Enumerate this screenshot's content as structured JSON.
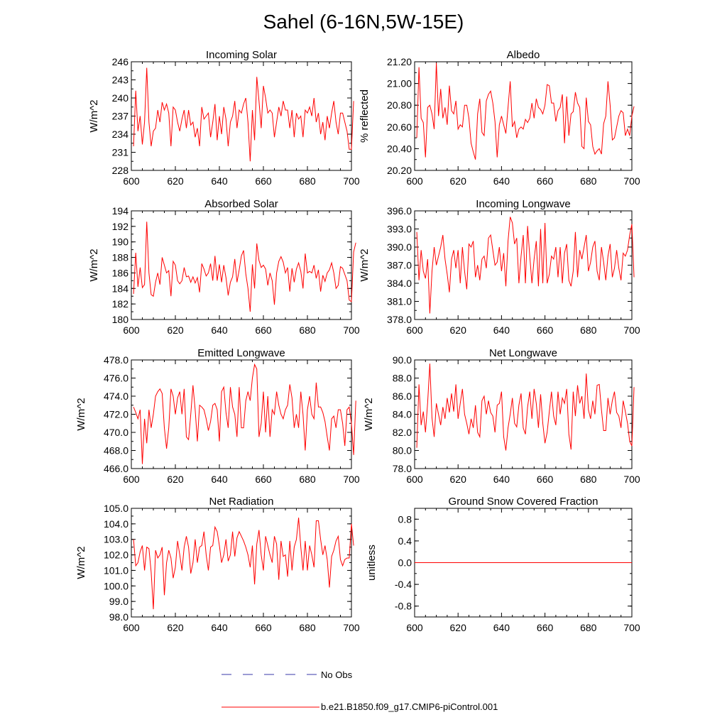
{
  "figure": {
    "title": "Sahel (6-16N,5W-15E)"
  },
  "legend": [
    {
      "label": "No Obs",
      "color": "#3a3aa8",
      "style": "dashed"
    },
    {
      "label": "b.e21.B1850.f09_g17.CMIP6-piControl.001",
      "color": "#ff0000",
      "style": "solid"
    }
  ],
  "chart_data": [
    {
      "id": "incoming-solar",
      "type": "line",
      "title": "Incoming Solar",
      "xlabel": "",
      "ylabel": "W/m^2",
      "xlim": [
        600,
        700
      ],
      "ylim": [
        228,
        246
      ],
      "xticks": [
        "600",
        "620",
        "640",
        "660",
        "680",
        "700"
      ],
      "yticks": [
        "228",
        "231",
        "234",
        "237",
        "240",
        "243",
        "246"
      ],
      "x_start": 601,
      "series": [
        {
          "name": "b.e21.B1850.f09_g17.CMIP6-piControl.001",
          "color": "#ff0000",
          "values": [
            232.0,
            241.2,
            234.5,
            237.0,
            232.3,
            236.0,
            245.0,
            236.0,
            232.0,
            234.5,
            235.0,
            238.0,
            236.0,
            239.3,
            238.0,
            239.0,
            237.5,
            232.0,
            238.5,
            238.0,
            236.0,
            234.5,
            236.5,
            238.0,
            235.0,
            238.0,
            235.5,
            236.0,
            233.5,
            235.0,
            232.0,
            238.5,
            236.5,
            237.0,
            237.5,
            233.5,
            236.0,
            239.0,
            233.0,
            237.0,
            234.0,
            238.5,
            236.5,
            232.0,
            236.0,
            237.0,
            239.5,
            235.0,
            238.0,
            237.5,
            239.0,
            240.0,
            236.0,
            229.5,
            238.0,
            233.0,
            243.5,
            239.5,
            235.0,
            242.0,
            240.0,
            237.5,
            238.0,
            237.5,
            233.5,
            236.0,
            238.5,
            237.0,
            239.5,
            238.0,
            238.0,
            235.0,
            238.0,
            233.5,
            237.5,
            236.5,
            237.0,
            233.5,
            238.0,
            237.5,
            238.5,
            237.0,
            240.0,
            236.0,
            237.5,
            234.0,
            236.0,
            233.0,
            237.0,
            235.0,
            237.5,
            239.5,
            236.0,
            234.0,
            237.5,
            237.5,
            236.0,
            234.5,
            231.5,
            231.5,
            239.5
          ]
        }
      ]
    },
    {
      "id": "albedo",
      "type": "line",
      "title": "Albedo",
      "xlabel": "",
      "ylabel": "% reflected",
      "xlim": [
        600,
        700
      ],
      "ylim": [
        20.2,
        21.2
      ],
      "xticks": [
        "600",
        "620",
        "640",
        "660",
        "680",
        "700"
      ],
      "yticks": [
        "20.20",
        "20.40",
        "20.60",
        "20.80",
        "21.00",
        "21.20"
      ],
      "x_start": 601,
      "series": [
        {
          "name": "b.e21.B1850.f09_g17.CMIP6-piControl.001",
          "color": "#ff0000",
          "values": [
            20.5,
            21.15,
            20.68,
            20.64,
            20.32,
            20.78,
            20.8,
            20.72,
            20.58,
            21.19,
            20.7,
            20.95,
            20.68,
            20.78,
            20.62,
            20.98,
            20.75,
            20.72,
            20.84,
            20.58,
            20.62,
            20.6,
            20.8,
            20.8,
            20.68,
            20.45,
            20.37,
            20.3,
            20.72,
            20.86,
            20.55,
            20.52,
            20.84,
            20.9,
            20.93,
            20.82,
            20.65,
            20.32,
            20.62,
            20.7,
            20.62,
            20.54,
            20.78,
            21.02,
            20.6,
            20.65,
            20.5,
            20.58,
            20.6,
            20.58,
            20.67,
            20.64,
            20.68,
            20.82,
            20.68,
            20.86,
            20.78,
            20.76,
            20.72,
            20.8,
            20.99,
            20.98,
            20.82,
            20.82,
            20.65,
            20.75,
            20.78,
            20.9,
            20.45,
            20.88,
            20.52,
            20.72,
            20.74,
            20.92,
            20.82,
            20.78,
            20.42,
            20.4,
            20.87,
            20.65,
            20.62,
            20.42,
            20.35,
            20.38,
            20.4,
            20.35,
            20.63,
            20.7,
            21.02,
            20.8,
            20.48,
            20.5,
            20.6,
            20.7,
            20.75,
            20.73,
            20.52,
            20.58,
            20.52,
            20.7,
            20.79
          ]
        }
      ]
    },
    {
      "id": "absorbed-solar",
      "type": "line",
      "title": "Absorbed Solar",
      "xlabel": "",
      "ylabel": "W/m^2",
      "xlim": [
        600,
        700
      ],
      "ylim": [
        180,
        194
      ],
      "xticks": [
        "600",
        "620",
        "640",
        "660",
        "680",
        "700"
      ],
      "yticks": [
        "180",
        "182",
        "184",
        "186",
        "188",
        "190",
        "192",
        "194"
      ],
      "x_start": 601,
      "series": [
        {
          "name": "b.e21.B1850.f09_g17.CMIP6-piControl.001",
          "color": "#ff0000",
          "values": [
            183.3,
            188.6,
            184.2,
            186.7,
            184.1,
            184.5,
            192.6,
            186.0,
            183.2,
            183.0,
            184.8,
            186.0,
            184.5,
            188.0,
            187.0,
            186.0,
            186.3,
            183.0,
            187.5,
            187.0,
            185.0,
            184.6,
            185.0,
            186.7,
            185.5,
            185.6,
            184.8,
            185.5,
            184.7,
            185.4,
            183.5,
            187.2,
            186.5,
            185.6,
            186.0,
            187.2,
            185.0,
            188.2,
            185.0,
            187.1,
            184.8,
            187.0,
            185.4,
            183.1,
            184.8,
            185.5,
            187.8,
            184.8,
            186.4,
            188.2,
            188.9,
            185.9,
            184.0,
            181.0,
            187.1,
            184.0,
            189.8,
            187.6,
            186.7,
            187.0,
            186.5,
            184.4,
            186.0,
            185.0,
            181.9,
            186.0,
            187.5,
            188.1,
            187.4,
            186.0,
            186.7,
            183.6,
            186.6,
            184.8,
            186.5,
            187.3,
            186.2,
            184.0,
            188.5,
            186.0,
            186.2,
            186.0,
            187.0,
            185.3,
            186.4,
            183.6,
            185.7,
            184.9,
            186.0,
            186.4,
            187.3,
            186.0,
            184.0,
            184.4,
            186.8,
            186.6,
            185.8,
            185.0,
            182.5,
            182.3,
            188.7,
            189.9
          ]
        }
      ]
    },
    {
      "id": "incoming-longwave",
      "type": "line",
      "title": "Incoming Longwave",
      "xlabel": "",
      "ylabel": "W/m^2",
      "xlim": [
        600,
        700
      ],
      "ylim": [
        378,
        396
      ],
      "xticks": [
        "600",
        "620",
        "640",
        "660",
        "680",
        "700"
      ],
      "yticks": [
        "378.0",
        "381.0",
        "384.0",
        "387.0",
        "390.0",
        "393.0",
        "396.0"
      ],
      "x_start": 601,
      "series": [
        {
          "name": "b.e21.B1850.f09_g17.CMIP6-piControl.001",
          "color": "#ff0000",
          "values": [
            392.5,
            384.5,
            389.5,
            386.0,
            384.8,
            388.0,
            379.0,
            386.0,
            390.0,
            387.0,
            388.5,
            390.0,
            392.0,
            388.0,
            385.5,
            382.5,
            388.0,
            389.5,
            386.5,
            389.5,
            384.0,
            390.0,
            386.0,
            383.0,
            390.5,
            390.0,
            391.0,
            385.0,
            387.0,
            384.5,
            388.0,
            388.5,
            386.5,
            391.5,
            392.0,
            389.5,
            387.0,
            387.5,
            390.0,
            386.0,
            389.0,
            383.5,
            391.0,
            395.0,
            394.0,
            390.5,
            391.5,
            384.0,
            388.5,
            392.0,
            384.0,
            393.5,
            388.5,
            384.0,
            388.0,
            391.0,
            383.5,
            393.0,
            384.0,
            394.0,
            384.0,
            385.5,
            388.5,
            388.0,
            390.0,
            385.0,
            390.0,
            384.0,
            389.0,
            390.5,
            384.5,
            383.5,
            386.0,
            392.5,
            385.0,
            389.5,
            388.0,
            390.0,
            392.0,
            386.0,
            387.5,
            390.0,
            391.0,
            386.0,
            384.5,
            390.0,
            387.5,
            384.5,
            388.5,
            390.5,
            385.0,
            386.5,
            389.5,
            386.5,
            384.5,
            389.0,
            388.5,
            389.5,
            392.0,
            393.8,
            385.0
          ]
        }
      ]
    },
    {
      "id": "emitted-longwave",
      "type": "line",
      "title": "Emitted Longwave",
      "xlabel": "",
      "ylabel": "W/m^2",
      "xlim": [
        600,
        700
      ],
      "ylim": [
        466,
        478
      ],
      "xticks": [
        "600",
        "620",
        "640",
        "660",
        "680",
        "700"
      ],
      "yticks": [
        "466.0",
        "468.0",
        "470.0",
        "472.0",
        "474.0",
        "476.0",
        "478.0"
      ],
      "x_start": 601,
      "series": [
        {
          "name": "b.e21.B1850.f09_g17.CMIP6-piControl.001",
          "color": "#ff0000",
          "values": [
            472.8,
            472.2,
            471.5,
            472.5,
            466.5,
            471.5,
            468.8,
            472.5,
            470.5,
            472.0,
            474.0,
            474.5,
            474.8,
            474.3,
            470.5,
            468.2,
            470.5,
            474.8,
            474.0,
            472.0,
            473.8,
            474.5,
            472.0,
            474.8,
            469.5,
            469.2,
            472.0,
            475.2,
            472.5,
            469.0,
            473.0,
            472.8,
            472.5,
            471.5,
            470.2,
            471.2,
            473.0,
            473.2,
            472.5,
            469.0,
            474.5,
            475.0,
            472.2,
            470.5,
            475.0,
            472.8,
            472.0,
            469.5,
            475.0,
            470.5,
            470.5,
            473.5,
            474.5,
            473.5,
            476.0,
            477.5,
            477.0,
            469.5,
            471.0,
            474.5,
            470.0,
            474.0,
            469.5,
            472.5,
            472.0,
            474.5,
            473.0,
            472.0,
            471.5,
            472.5,
            473.0,
            475.3,
            473.8,
            470.5,
            472.0,
            470.5,
            474.5,
            472.0,
            468.0,
            472.5,
            474.0,
            472.0,
            471.5,
            475.5,
            472.8,
            472.8,
            472.2,
            471.2,
            469.5,
            468.0,
            471.5,
            471.8,
            470.5,
            472.5,
            472.5,
            471.0,
            468.5,
            472.5,
            472.8,
            471.0,
            467.5,
            473.5
          ]
        }
      ]
    },
    {
      "id": "net-longwave",
      "type": "line",
      "title": "Net Longwave",
      "xlabel": "",
      "ylabel": "W/m^2",
      "xlim": [
        600,
        700
      ],
      "ylim": [
        78,
        90
      ],
      "xticks": [
        "600",
        "620",
        "640",
        "660",
        "680",
        "700"
      ],
      "yticks": [
        "78.0",
        "80.0",
        "82.0",
        "84.0",
        "86.0",
        "88.0",
        "90.0"
      ],
      "x_start": 601,
      "series": [
        {
          "name": "b.e21.B1850.f09_g17.CMIP6-piControl.001",
          "color": "#ff0000",
          "values": [
            80.3,
            87.3,
            82.8,
            84.3,
            82.0,
            85.3,
            89.6,
            83.6,
            81.5,
            85.2,
            84.0,
            82.8,
            84.8,
            83.5,
            85.8,
            84.2,
            86.3,
            84.3,
            87.3,
            83.5,
            85.2,
            86.8,
            84.0,
            83.0,
            81.8,
            83.5,
            82.5,
            85.0,
            82.0,
            81.5,
            85.5,
            86.0,
            84.0,
            85.5,
            84.2,
            83.8,
            82.0,
            85.0,
            85.2,
            86.5,
            81.5,
            80.0,
            82.5,
            84.0,
            85.8,
            83.0,
            82.6,
            85.0,
            86.3,
            82.5,
            81.8,
            84.8,
            86.5,
            83.5,
            86.8,
            85.2,
            82.5,
            86.2,
            83.0,
            80.8,
            82.0,
            84.3,
            86.5,
            83.8,
            82.8,
            86.5,
            84.0,
            85.8,
            85.2,
            86.8,
            81.8,
            80.1,
            86.5,
            83.8,
            87.2,
            85.2,
            86.0,
            83.5,
            88.5,
            84.5,
            83.5,
            85.5,
            84.0,
            87.2,
            87.3,
            84.5,
            82.2,
            82.2,
            85.8,
            84.0,
            85.5,
            86.5,
            84.2,
            83.8,
            82.5,
            85.5,
            84.3,
            83.0,
            81.0,
            80.5,
            87.0
          ]
        }
      ]
    },
    {
      "id": "net-radiation",
      "type": "line",
      "title": "Net Radiation",
      "xlabel": "",
      "ylabel": "W/m^2",
      "xlim": [
        600,
        700
      ],
      "ylim": [
        98,
        105
      ],
      "xticks": [
        "600",
        "620",
        "640",
        "660",
        "680",
        "700"
      ],
      "yticks": [
        "98.0",
        "99.0",
        "100.0",
        "101.0",
        "102.0",
        "103.0",
        "104.0",
        "105.0"
      ],
      "x_start": 601,
      "series": [
        {
          "name": "b.e21.B1850.f09_g17.CMIP6-piControl.001",
          "color": "#ff0000",
          "values": [
            103.0,
            101.3,
            101.5,
            102.2,
            102.6,
            101.0,
            102.5,
            102.4,
            100.9,
            98.5,
            102.3,
            101.8,
            102.0,
            102.5,
            99.4,
            101.5,
            102.3,
            101.8,
            100.5,
            101.2,
            102.9,
            102.0,
            101.0,
            102.5,
            103.2,
            102.5,
            100.8,
            101.5,
            103.0,
            101.5,
            102.5,
            102.6,
            103.5,
            102.0,
            101.0,
            102.5,
            102.6,
            103.8,
            103.5,
            102.6,
            101.5,
            102.0,
            103.0,
            101.6,
            102.0,
            103.5,
            101.9,
            103.1,
            103.5,
            103.2,
            102.9,
            102.5,
            102.0,
            101.2,
            102.6,
            100.1,
            102.7,
            103.6,
            102.0,
            101.0,
            103.2,
            102.6,
            102.0,
            101.5,
            103.2,
            102.7,
            100.4,
            102.9,
            101.9,
            102.0,
            100.6,
            102.9,
            101.0,
            102.5,
            103.0,
            104.4,
            102.5,
            101.0,
            102.9,
            101.0,
            102.6,
            102.0,
            101.2,
            104.2,
            104.2,
            103.0,
            102.0,
            102.6,
            101.7,
            99.9,
            101.9,
            102.3,
            102.9,
            103.2,
            101.7,
            101.3,
            101.7,
            101.8,
            101.8,
            104.0,
            102.6
          ]
        }
      ]
    },
    {
      "id": "ground-snow-covered-fraction",
      "type": "line",
      "title": "Ground Snow Covered Fraction",
      "xlabel": "",
      "ylabel": "unitless",
      "xlim": [
        600,
        700
      ],
      "ylim": [
        -1.0,
        1.0
      ],
      "xticks": [
        "600",
        "620",
        "640",
        "660",
        "680",
        "700"
      ],
      "yticks": [
        "-0.8",
        "-0.4",
        "0.0",
        "0.4",
        "0.8"
      ],
      "ytick_values": [
        -0.8,
        -0.4,
        0.0,
        0.4,
        0.8
      ],
      "x_start": 601,
      "series": [
        {
          "name": "b.e21.B1850.f09_g17.CMIP6-piControl.001",
          "color": "#ff0000",
          "values": [
            0.0,
            0.0
          ]
        }
      ],
      "series_x": [
        600,
        700
      ]
    }
  ]
}
